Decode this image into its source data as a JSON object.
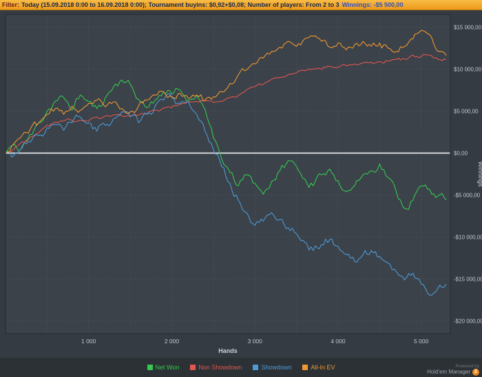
{
  "filter_bar": {
    "prefix": "Filter:",
    "text": "Today (15.09.2018 0:00 to 16.09.2018 0:00); Tournament buyins: $0,92+$0,08; Number of players: From 2 to 3",
    "winnings": "Winnings: -$5 500,00"
  },
  "footer": {
    "powered_by": "Powered by",
    "brand": "Hold'em Manager",
    "badge": "2"
  },
  "chart_data": {
    "type": "line",
    "title": "",
    "xlabel": "Hands",
    "ylabel": "Winnings",
    "xlim": [
      0,
      5350
    ],
    "ylim": [
      -21500,
      16500
    ],
    "grid": {
      "v_step": 500,
      "h_step": 5000,
      "color": "#4e565e"
    },
    "zero_line": {
      "value": 0,
      "color": "#ffffff"
    },
    "x_ticks": [
      {
        "value": 1000,
        "label": "1 000"
      },
      {
        "value": 2000,
        "label": "2 000"
      },
      {
        "value": 3000,
        "label": "3 000"
      },
      {
        "value": 4000,
        "label": "4 000"
      },
      {
        "value": 5000,
        "label": "5 000"
      }
    ],
    "y_ticks": [
      {
        "value": 15000,
        "label": "$15 000,00"
      },
      {
        "value": 10000,
        "label": "$10 000,00"
      },
      {
        "value": 5000,
        "label": "$5 000,00"
      },
      {
        "value": 0,
        "label": "$0,00"
      },
      {
        "value": -5000,
        "label": "-$5 000,00"
      },
      {
        "value": -10000,
        "label": "-$10 000,00"
      },
      {
        "value": -15000,
        "label": "-$15 000,00"
      },
      {
        "value": -20000,
        "label": "-$20 000,00"
      }
    ],
    "series": [
      {
        "name": "Net Won",
        "color": "#36c94f",
        "noise": 500,
        "seed": 11,
        "points": [
          [
            0,
            0
          ],
          [
            80,
            900
          ],
          [
            160,
            200
          ],
          [
            240,
            1400
          ],
          [
            320,
            2200
          ],
          [
            400,
            3600
          ],
          [
            500,
            5000
          ],
          [
            600,
            6200
          ],
          [
            700,
            6600
          ],
          [
            800,
            5100
          ],
          [
            900,
            6900
          ],
          [
            1000,
            6100
          ],
          [
            1100,
            5300
          ],
          [
            1200,
            6600
          ],
          [
            1300,
            7900
          ],
          [
            1400,
            8700
          ],
          [
            1500,
            8200
          ],
          [
            1600,
            6400
          ],
          [
            1700,
            5400
          ],
          [
            1800,
            6300
          ],
          [
            1900,
            7300
          ],
          [
            2000,
            7000
          ],
          [
            2100,
            7500
          ],
          [
            2200,
            6300
          ],
          [
            2300,
            6900
          ],
          [
            2400,
            5200
          ],
          [
            2500,
            1800
          ],
          [
            2600,
            -700
          ],
          [
            2700,
            -2300
          ],
          [
            2800,
            -3900
          ],
          [
            2900,
            -2600
          ],
          [
            3000,
            -3600
          ],
          [
            3100,
            -4900
          ],
          [
            3200,
            -3400
          ],
          [
            3300,
            -2100
          ],
          [
            3400,
            -900
          ],
          [
            3500,
            -1600
          ],
          [
            3600,
            -3100
          ],
          [
            3700,
            -3900
          ],
          [
            3800,
            -2600
          ],
          [
            3900,
            -1900
          ],
          [
            4000,
            -3300
          ],
          [
            4100,
            -4600
          ],
          [
            4200,
            -3900
          ],
          [
            4300,
            -2600
          ],
          [
            4400,
            -2100
          ],
          [
            4500,
            -1300
          ],
          [
            4600,
            -2900
          ],
          [
            4700,
            -4600
          ],
          [
            4800,
            -6600
          ],
          [
            4900,
            -5600
          ],
          [
            5000,
            -3900
          ],
          [
            5100,
            -4300
          ],
          [
            5200,
            -5100
          ],
          [
            5300,
            -5600
          ]
        ]
      },
      {
        "name": "Non Showdown",
        "color": "#e2574e",
        "noise": 220,
        "seed": 22,
        "points": [
          [
            0,
            0
          ],
          [
            150,
            900
          ],
          [
            300,
            1900
          ],
          [
            450,
            2900
          ],
          [
            600,
            3700
          ],
          [
            750,
            4100
          ],
          [
            900,
            3900
          ],
          [
            1050,
            4200
          ],
          [
            1200,
            4400
          ],
          [
            1350,
            4600
          ],
          [
            1500,
            4400
          ],
          [
            1650,
            4700
          ],
          [
            1800,
            5100
          ],
          [
            1950,
            5500
          ],
          [
            2100,
            5800
          ],
          [
            2250,
            6100
          ],
          [
            2400,
            6200
          ],
          [
            2550,
            6100
          ],
          [
            2700,
            6600
          ],
          [
            2850,
            7200
          ],
          [
            3000,
            7900
          ],
          [
            3150,
            8500
          ],
          [
            3300,
            9000
          ],
          [
            3450,
            9400
          ],
          [
            3600,
            9800
          ],
          [
            3750,
            10100
          ],
          [
            3900,
            10300
          ],
          [
            4050,
            10500
          ],
          [
            4200,
            10600
          ],
          [
            4350,
            10800
          ],
          [
            4500,
            10900
          ],
          [
            4650,
            11100
          ],
          [
            4800,
            11200
          ],
          [
            4950,
            11500
          ],
          [
            5050,
            11700
          ],
          [
            5150,
            11300
          ],
          [
            5250,
            11000
          ],
          [
            5300,
            11100
          ]
        ]
      },
      {
        "name": "Showdown",
        "color": "#4e9ad6",
        "noise": 500,
        "seed": 33,
        "points": [
          [
            0,
            0
          ],
          [
            100,
            -300
          ],
          [
            200,
            600
          ],
          [
            300,
            1300
          ],
          [
            400,
            2100
          ],
          [
            500,
            3000
          ],
          [
            600,
            3400
          ],
          [
            700,
            2700
          ],
          [
            800,
            3600
          ],
          [
            900,
            4300
          ],
          [
            1000,
            3600
          ],
          [
            1100,
            2600
          ],
          [
            1200,
            3300
          ],
          [
            1300,
            4100
          ],
          [
            1400,
            4900
          ],
          [
            1500,
            4300
          ],
          [
            1600,
            3600
          ],
          [
            1700,
            4600
          ],
          [
            1800,
            5600
          ],
          [
            1900,
            6300
          ],
          [
            2000,
            6600
          ],
          [
            2100,
            5900
          ],
          [
            2200,
            6100
          ],
          [
            2300,
            4600
          ],
          [
            2400,
            2600
          ],
          [
            2500,
            400
          ],
          [
            2600,
            -1600
          ],
          [
            2700,
            -3600
          ],
          [
            2800,
            -5600
          ],
          [
            2900,
            -7100
          ],
          [
            3000,
            -8600
          ],
          [
            3100,
            -8100
          ],
          [
            3200,
            -7100
          ],
          [
            3300,
            -7900
          ],
          [
            3400,
            -8900
          ],
          [
            3500,
            -9600
          ],
          [
            3600,
            -10600
          ],
          [
            3700,
            -11600
          ],
          [
            3800,
            -10900
          ],
          [
            3900,
            -10300
          ],
          [
            4000,
            -11100
          ],
          [
            4100,
            -12100
          ],
          [
            4200,
            -12900
          ],
          [
            4300,
            -12100
          ],
          [
            4400,
            -11600
          ],
          [
            4500,
            -12300
          ],
          [
            4600,
            -13100
          ],
          [
            4700,
            -14100
          ],
          [
            4800,
            -15100
          ],
          [
            4900,
            -14300
          ],
          [
            5000,
            -15600
          ],
          [
            5100,
            -16900
          ],
          [
            5200,
            -16100
          ],
          [
            5300,
            -15600
          ]
        ]
      },
      {
        "name": "All-In EV",
        "color": "#f09830",
        "noise": 420,
        "seed": 44,
        "points": [
          [
            0,
            0
          ],
          [
            100,
            1100
          ],
          [
            200,
            2100
          ],
          [
            300,
            2900
          ],
          [
            400,
            3600
          ],
          [
            500,
            4600
          ],
          [
            600,
            5300
          ],
          [
            700,
            4600
          ],
          [
            800,
            5600
          ],
          [
            900,
            5100
          ],
          [
            1000,
            5900
          ],
          [
            1100,
            6300
          ],
          [
            1200,
            5500
          ],
          [
            1300,
            6100
          ],
          [
            1400,
            5300
          ],
          [
            1500,
            4900
          ],
          [
            1600,
            5600
          ],
          [
            1700,
            6300
          ],
          [
            1800,
            6900
          ],
          [
            1900,
            7300
          ],
          [
            2000,
            6700
          ],
          [
            2100,
            7100
          ],
          [
            2200,
            6500
          ],
          [
            2300,
            6900
          ],
          [
            2400,
            6300
          ],
          [
            2500,
            6700
          ],
          [
            2600,
            7300
          ],
          [
            2700,
            8300
          ],
          [
            2800,
            9300
          ],
          [
            2900,
            9900
          ],
          [
            3000,
            10600
          ],
          [
            3100,
            11300
          ],
          [
            3200,
            12100
          ],
          [
            3300,
            12600
          ],
          [
            3400,
            13300
          ],
          [
            3500,
            12700
          ],
          [
            3600,
            13600
          ],
          [
            3700,
            13900
          ],
          [
            3800,
            13300
          ],
          [
            3900,
            12600
          ],
          [
            4000,
            13100
          ],
          [
            4100,
            12300
          ],
          [
            4200,
            12900
          ],
          [
            4300,
            13300
          ],
          [
            4400,
            12700
          ],
          [
            4500,
            13100
          ],
          [
            4600,
            12500
          ],
          [
            4700,
            12100
          ],
          [
            4800,
            12700
          ],
          [
            4900,
            13600
          ],
          [
            5000,
            14600
          ],
          [
            5100,
            14100
          ],
          [
            5200,
            12100
          ],
          [
            5300,
            11600
          ]
        ]
      }
    ],
    "legend_position": "bottom-center",
    "colors": {
      "plot_bg": "#3b424a",
      "outer_bg": "#353b42",
      "tick_text": "#c3c8cd"
    }
  }
}
